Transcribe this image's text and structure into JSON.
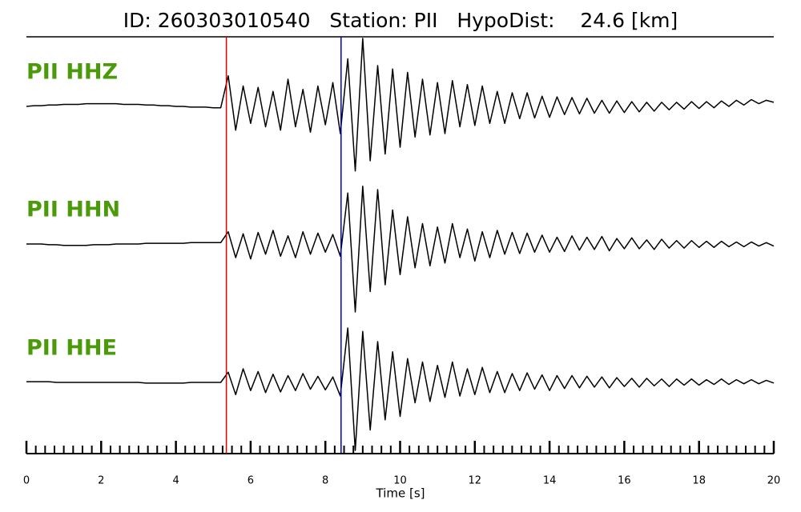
{
  "chart_data": {
    "type": "waveform",
    "title": "ID: 260303010540   Station: PII   HypoDist:    24.6 [km]",
    "xlabel": "Time [s]",
    "xlim": [
      0,
      20
    ],
    "xticks": [
      0,
      2,
      4,
      6,
      8,
      10,
      12,
      14,
      16,
      18,
      20
    ],
    "xminor_step": 0.25,
    "ylim": [
      -1,
      1
    ],
    "x": [
      0,
      0.2,
      0.4,
      0.6,
      0.8,
      1,
      1.2,
      1.4,
      1.6,
      1.8,
      2,
      2.2,
      2.4,
      2.6,
      2.8,
      3,
      3.2,
      3.4,
      3.6,
      3.8,
      4,
      4.2,
      4.4,
      4.6,
      4.8,
      5,
      5.2,
      5.4,
      5.6,
      5.8,
      6,
      6.2,
      6.4,
      6.6,
      6.8,
      7,
      7.2,
      7.4,
      7.6,
      7.8,
      8,
      8.2,
      8.4,
      8.6,
      8.8,
      9,
      9.2,
      9.4,
      9.6,
      9.8,
      10,
      10.2,
      10.4,
      10.6,
      10.8,
      11,
      11.2,
      11.4,
      11.6,
      11.8,
      12,
      12.2,
      12.4,
      12.6,
      12.8,
      13,
      13.2,
      13.4,
      13.6,
      13.8,
      14,
      14.2,
      14.4,
      14.6,
      14.8,
      15,
      15.2,
      15.4,
      15.6,
      15.8,
      16,
      16.2,
      16.4,
      16.6,
      16.8,
      17,
      17.2,
      17.4,
      17.6,
      17.8,
      18,
      18.2,
      18.4,
      18.6,
      18.8,
      19,
      19.2,
      19.4,
      19.6,
      19.8,
      20
    ],
    "series": [
      {
        "name": "PII HHZ",
        "color": "#000000",
        "label_color": "#4a9a0a",
        "values": [
          0,
          0.01,
          0.01,
          0.02,
          0.02,
          0.03,
          0.03,
          0.03,
          0.04,
          0.04,
          0.04,
          0.04,
          0.04,
          0.03,
          0.03,
          0.03,
          0.02,
          0.02,
          0.01,
          0.01,
          0,
          0,
          -0.01,
          -0.01,
          -0.01,
          -0.02,
          -0.02,
          0.45,
          -0.35,
          0.3,
          -0.25,
          0.28,
          -0.3,
          0.22,
          -0.35,
          0.4,
          -0.3,
          0.25,
          -0.38,
          0.3,
          -0.27,
          0.35,
          -0.4,
          0.7,
          -0.95,
          1.0,
          -0.8,
          0.6,
          -0.7,
          0.55,
          -0.6,
          0.5,
          -0.45,
          0.4,
          -0.42,
          0.35,
          -0.4,
          0.38,
          -0.3,
          0.32,
          -0.28,
          0.3,
          -0.25,
          0.22,
          -0.25,
          0.2,
          -0.18,
          0.2,
          -0.17,
          0.15,
          -0.16,
          0.14,
          -0.12,
          0.13,
          -0.11,
          0.12,
          -0.1,
          0.09,
          -0.1,
          0.08,
          -0.09,
          0.07,
          -0.08,
          0.06,
          -0.07,
          0.06,
          -0.05,
          0.06,
          -0.04,
          0.07,
          -0.03,
          0.07,
          -0.02,
          0.08,
          0,
          0.09,
          0.02,
          0.1,
          0.04,
          0.09,
          0.06
        ]
      },
      {
        "name": "PII HHN",
        "color": "#000000",
        "label_color": "#4a9a0a",
        "values": [
          0,
          0,
          0,
          -0.01,
          -0.01,
          -0.02,
          -0.02,
          -0.02,
          -0.02,
          -0.01,
          -0.01,
          -0.01,
          0,
          0,
          0,
          0,
          0.01,
          0.01,
          0.01,
          0.01,
          0.01,
          0.01,
          0.02,
          0.02,
          0.02,
          0.02,
          0.02,
          0.18,
          -0.2,
          0.15,
          -0.22,
          0.17,
          -0.15,
          0.2,
          -0.18,
          0.12,
          -0.2,
          0.18,
          -0.15,
          0.16,
          -0.12,
          0.14,
          -0.18,
          0.75,
          -1.0,
          0.85,
          -0.7,
          0.8,
          -0.6,
          0.5,
          -0.45,
          0.4,
          -0.35,
          0.3,
          -0.32,
          0.25,
          -0.28,
          0.3,
          -0.2,
          0.22,
          -0.25,
          0.18,
          -0.2,
          0.2,
          -0.15,
          0.17,
          -0.14,
          0.16,
          -0.12,
          0.13,
          -0.12,
          0.1,
          -0.11,
          0.12,
          -0.09,
          0.1,
          -0.08,
          0.11,
          -0.1,
          0.08,
          -0.07,
          0.09,
          -0.07,
          0.06,
          -0.08,
          0.07,
          -0.06,
          0.05,
          -0.06,
          0.05,
          -0.05,
          0.04,
          -0.05,
          0.04,
          -0.04,
          0.03,
          -0.04,
          0.03,
          -0.03,
          0.02,
          -0.03
        ]
      },
      {
        "name": "PII HHE",
        "color": "#000000",
        "label_color": "#4a9a0a",
        "values": [
          0.01,
          0.01,
          0.01,
          0.01,
          0,
          0,
          0,
          0,
          0,
          0,
          0,
          0,
          0,
          0,
          0,
          0,
          -0.01,
          -0.01,
          -0.01,
          -0.01,
          -0.01,
          -0.01,
          0,
          0,
          0,
          0,
          0,
          0.15,
          -0.18,
          0.2,
          -0.12,
          0.16,
          -0.15,
          0.12,
          -0.14,
          0.1,
          -0.12,
          0.13,
          -0.1,
          0.09,
          -0.11,
          0.08,
          -0.2,
          0.8,
          -1.0,
          0.75,
          -0.7,
          0.6,
          -0.55,
          0.45,
          -0.5,
          0.35,
          -0.3,
          0.3,
          -0.28,
          0.25,
          -0.22,
          0.3,
          -0.2,
          0.2,
          -0.18,
          0.22,
          -0.15,
          0.16,
          -0.15,
          0.13,
          -0.12,
          0.14,
          -0.1,
          0.11,
          -0.12,
          0.1,
          -0.09,
          0.1,
          -0.08,
          0.09,
          -0.07,
          0.08,
          -0.08,
          0.07,
          -0.06,
          0.06,
          -0.07,
          0.06,
          -0.05,
          0.05,
          -0.06,
          0.05,
          -0.04,
          0.05,
          -0.04,
          0.04,
          -0.03,
          0.05,
          -0.03,
          0.04,
          -0.02,
          0.04,
          -0.02,
          0.03,
          -0.01
        ]
      }
    ],
    "vlines": [
      {
        "x": 5.35,
        "color": "#e00000"
      },
      {
        "x": 8.42,
        "color": "#0000cc"
      }
    ]
  }
}
